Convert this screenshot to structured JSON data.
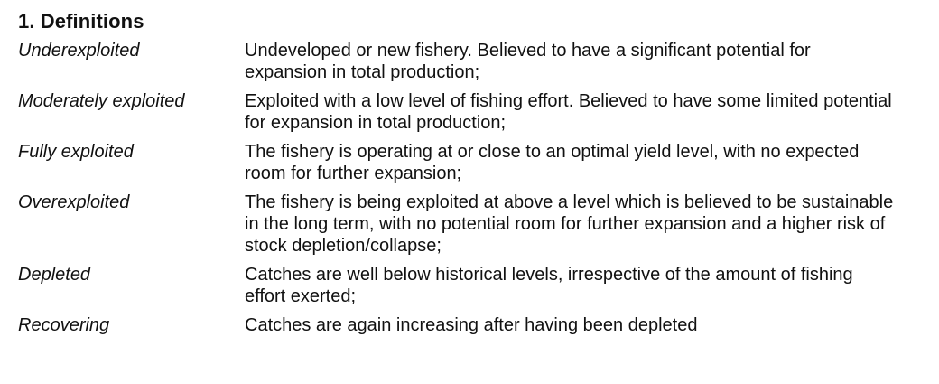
{
  "section": {
    "title": "1. Definitions"
  },
  "definitions": [
    {
      "term": "Underexploited",
      "description": "Undeveloped or new fishery. Believed to have a significant potential for expansion in total production;"
    },
    {
      "term": "Moderately exploited",
      "description": "Exploited with a low level of fishing effort. Believed to have some limited potential for expansion in total production;"
    },
    {
      "term": "Fully exploited",
      "description": "The fishery is operating at or close to an optimal yield level, with no expected room for further expansion;"
    },
    {
      "term": "Overexploited",
      "description": "The fishery is being exploited at above a level which is believed to be sustainable in the long term, with no potential room for further expansion and a higher risk of stock depletion/collapse;"
    },
    {
      "term": "Depleted",
      "description": "Catches are well below historical levels, irrespective of the amount of fishing effort exerted;"
    },
    {
      "term": "Recovering",
      "description": "Catches are again increasing after having been depleted"
    }
  ]
}
